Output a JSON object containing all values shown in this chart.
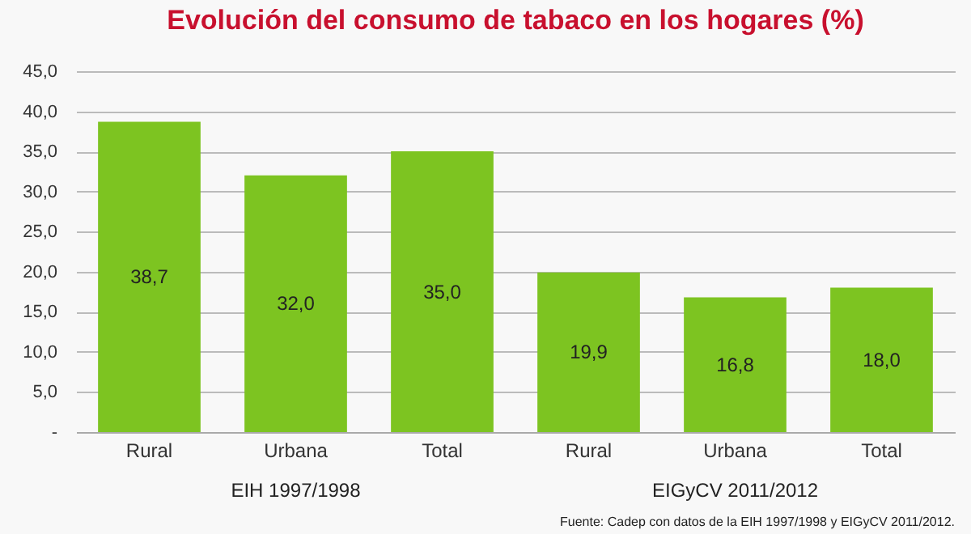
{
  "chart_data": {
    "type": "bar",
    "title": "Evolución del consumo de tabaco en los hogares (%)",
    "categories": [
      "Rural",
      "Urbana",
      "Total",
      "Rural",
      "Urbana",
      "Total"
    ],
    "values": [
      38.7,
      32.0,
      35.0,
      19.9,
      16.8,
      18.0
    ],
    "value_labels": [
      "38,7",
      "32,0",
      "35,0",
      "19,9",
      "16,8",
      "18,0"
    ],
    "color": "#7dc421",
    "ylim": [
      0,
      45
    ],
    "yticks": [
      {
        "value": 0,
        "label": "-"
      },
      {
        "value": 5,
        "label": "5,0"
      },
      {
        "value": 10,
        "label": "10,0"
      },
      {
        "value": 15,
        "label": "15,0"
      },
      {
        "value": 20,
        "label": "20,0"
      },
      {
        "value": 25,
        "label": "25,0"
      },
      {
        "value": 30,
        "label": "30,0"
      },
      {
        "value": 35,
        "label": "35,0"
      },
      {
        "value": 40,
        "label": "40,0"
      },
      {
        "value": 45,
        "label": "45,0"
      }
    ],
    "grid": "y",
    "annotations": [
      "EIH 1997/1998",
      "EIGyCV 2011/2012",
      "Fuente: Cadep con datos de la EIH 1997/1998 y EIGyCV 2011/2012."
    ]
  }
}
